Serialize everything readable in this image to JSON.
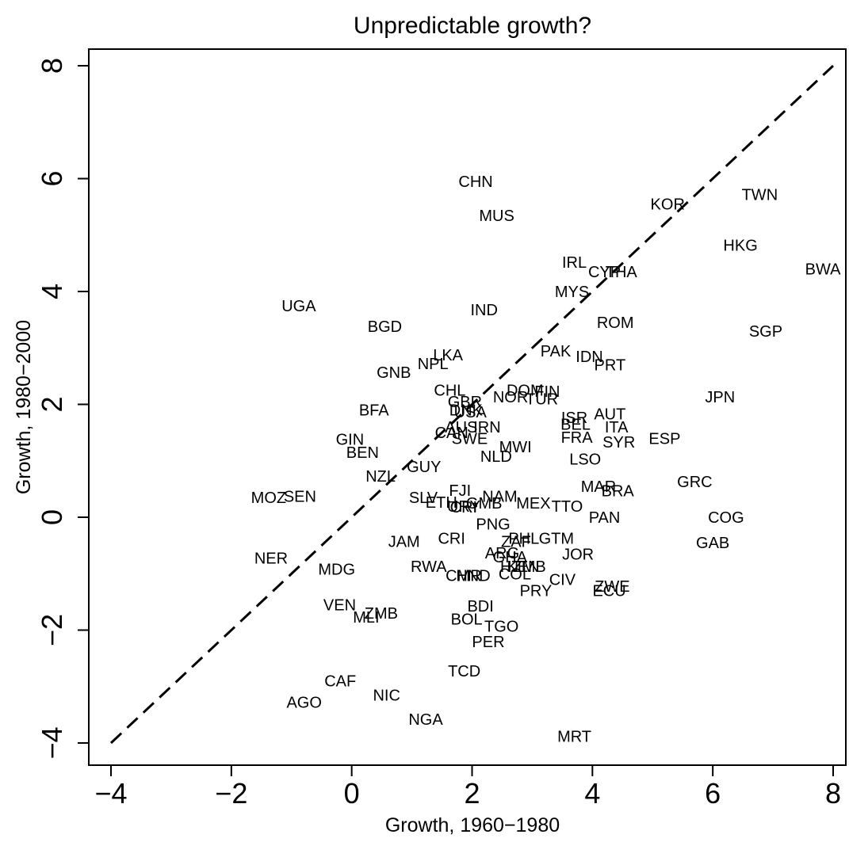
{
  "chart_data": {
    "type": "scatter",
    "title": "Unpredictable growth?",
    "xlabel": "Growth, 1960−1980",
    "ylabel": "Growth, 1980−2000",
    "xlim": [
      -4.5,
      8.3
    ],
    "ylim": [
      -4.6,
      8.3
    ],
    "x_ticks": [
      -4,
      -2,
      0,
      2,
      4,
      6,
      8
    ],
    "y_ticks": [
      -4,
      -2,
      0,
      2,
      4,
      6,
      8
    ],
    "x_tick_labels": [
      "−4",
      "−2",
      "0",
      "2",
      "4",
      "6",
      "8"
    ],
    "y_tick_labels": [
      "−4",
      "−2",
      "0",
      "2",
      "4",
      "6",
      "8"
    ],
    "reference_line": {
      "style": "dashed",
      "from": [
        -4,
        -4
      ],
      "to": [
        8,
        8
      ]
    },
    "grid": false,
    "points": [
      {
        "label": "CHN",
        "x": 2.06,
        "y": 5.95
      },
      {
        "label": "MUS",
        "x": 2.41,
        "y": 5.35
      },
      {
        "label": "TWN",
        "x": 6.78,
        "y": 5.72
      },
      {
        "label": "KOR",
        "x": 5.25,
        "y": 5.55
      },
      {
        "label": "HKG",
        "x": 6.46,
        "y": 4.82
      },
      {
        "label": "BWA",
        "x": 7.83,
        "y": 4.4
      },
      {
        "label": "IRL",
        "x": 3.7,
        "y": 4.52
      },
      {
        "label": "CYP",
        "x": 4.2,
        "y": 4.35
      },
      {
        "label": "THA",
        "x": 4.48,
        "y": 4.35
      },
      {
        "label": "MYS",
        "x": 3.66,
        "y": 4.0
      },
      {
        "label": "UGA",
        "x": -0.88,
        "y": 3.75
      },
      {
        "label": "IND",
        "x": 2.2,
        "y": 3.68
      },
      {
        "label": "ROM",
        "x": 4.38,
        "y": 3.45
      },
      {
        "label": "SGP",
        "x": 6.88,
        "y": 3.3
      },
      {
        "label": "BGD",
        "x": 0.55,
        "y": 3.38
      },
      {
        "label": "PAK",
        "x": 3.39,
        "y": 2.95
      },
      {
        "label": "IDN",
        "x": 3.95,
        "y": 2.85
      },
      {
        "label": "LKA",
        "x": 1.6,
        "y": 2.88
      },
      {
        "label": "PRT",
        "x": 4.29,
        "y": 2.7
      },
      {
        "label": "NPL",
        "x": 1.35,
        "y": 2.72
      },
      {
        "label": "GNB",
        "x": 0.7,
        "y": 2.57
      },
      {
        "label": "JPN",
        "x": 6.12,
        "y": 2.13
      },
      {
        "label": "CHL",
        "x": 1.63,
        "y": 2.25
      },
      {
        "label": "DOM",
        "x": 2.88,
        "y": 2.25
      },
      {
        "label": "FIN",
        "x": 3.25,
        "y": 2.23
      },
      {
        "label": "NOR",
        "x": 2.64,
        "y": 2.13
      },
      {
        "label": "TUR",
        "x": 3.16,
        "y": 2.1
      },
      {
        "label": "GBR",
        "x": 1.88,
        "y": 2.05
      },
      {
        "label": "BFA",
        "x": 0.37,
        "y": 1.9
      },
      {
        "label": "DNK",
        "x": 1.9,
        "y": 1.9
      },
      {
        "label": "USA",
        "x": 1.97,
        "y": 1.87
      },
      {
        "label": "AUT",
        "x": 4.29,
        "y": 1.83
      },
      {
        "label": "ISR",
        "x": 3.7,
        "y": 1.77
      },
      {
        "label": "AUS",
        "x": 1.82,
        "y": 1.6
      },
      {
        "label": "IRN",
        "x": 2.25,
        "y": 1.6
      },
      {
        "label": "BEL",
        "x": 3.72,
        "y": 1.65
      },
      {
        "label": "ITA",
        "x": 4.4,
        "y": 1.6
      },
      {
        "label": "CAN",
        "x": 1.66,
        "y": 1.5
      },
      {
        "label": "SWE",
        "x": 1.96,
        "y": 1.4
      },
      {
        "label": "FRA",
        "x": 3.74,
        "y": 1.42
      },
      {
        "label": "ESP",
        "x": 5.2,
        "y": 1.4
      },
      {
        "label": "SYR",
        "x": 4.44,
        "y": 1.33
      },
      {
        "label": "GIN",
        "x": -0.03,
        "y": 1.38
      },
      {
        "label": "BEN",
        "x": 0.18,
        "y": 1.15
      },
      {
        "label": "MWI",
        "x": 2.72,
        "y": 1.25
      },
      {
        "label": "NLD",
        "x": 2.4,
        "y": 1.08
      },
      {
        "label": "LSO",
        "x": 3.88,
        "y": 1.03
      },
      {
        "label": "GUY",
        "x": 1.2,
        "y": 0.9
      },
      {
        "label": "NZL",
        "x": 0.48,
        "y": 0.73
      },
      {
        "label": "GRC",
        "x": 5.7,
        "y": 0.63
      },
      {
        "label": "MAR",
        "x": 4.1,
        "y": 0.55
      },
      {
        "label": "BRA",
        "x": 4.42,
        "y": 0.47
      },
      {
        "label": "FJI",
        "x": 1.8,
        "y": 0.48
      },
      {
        "label": "NAM",
        "x": 2.46,
        "y": 0.37
      },
      {
        "label": "MOZ",
        "x": -1.38,
        "y": 0.35
      },
      {
        "label": "SEN",
        "x": -0.86,
        "y": 0.37
      },
      {
        "label": "SLV",
        "x": 1.19,
        "y": 0.35
      },
      {
        "label": "ETH",
        "x": 1.49,
        "y": 0.27
      },
      {
        "label": "GMB",
        "x": 2.2,
        "y": 0.25
      },
      {
        "label": "URY",
        "x": 1.86,
        "y": 0.2
      },
      {
        "label": "CRI",
        "x": 1.86,
        "y": 0.18
      },
      {
        "label": "MEX",
        "x": 3.02,
        "y": 0.25
      },
      {
        "label": "TTO",
        "x": 3.58,
        "y": 0.2
      },
      {
        "label": "COG",
        "x": 6.22,
        "y": 0.0
      },
      {
        "label": "PAN",
        "x": 4.2,
        "y": 0.0
      },
      {
        "label": "PNG",
        "x": 2.35,
        "y": -0.12
      },
      {
        "label": "JAM",
        "x": 0.87,
        "y": -0.43
      },
      {
        "label": "CRI",
        "x": 1.66,
        "y": -0.37
      },
      {
        "label": "PHL",
        "x": 2.86,
        "y": -0.37
      },
      {
        "label": "GTM",
        "x": 3.4,
        "y": -0.37
      },
      {
        "label": "ZAF",
        "x": 2.73,
        "y": -0.43
      },
      {
        "label": "GAB",
        "x": 6.0,
        "y": -0.45
      },
      {
        "label": "ARG",
        "x": 2.5,
        "y": -0.63
      },
      {
        "label": "JOR",
        "x": 3.76,
        "y": -0.65
      },
      {
        "label": "GHA",
        "x": 2.63,
        "y": -0.7
      },
      {
        "label": "NER",
        "x": -1.34,
        "y": -0.72
      },
      {
        "label": "HTI",
        "x": 2.68,
        "y": -0.87
      },
      {
        "label": "KEN",
        "x": 2.85,
        "y": -0.87
      },
      {
        "label": "ZMB",
        "x": 2.95,
        "y": -0.87
      },
      {
        "label": "RWA",
        "x": 1.28,
        "y": -0.87
      },
      {
        "label": "MDG",
        "x": -0.25,
        "y": -0.92
      },
      {
        "label": "CMR",
        "x": 1.86,
        "y": -1.03
      },
      {
        "label": "HND",
        "x": 2.02,
        "y": -1.03
      },
      {
        "label": "COL",
        "x": 2.71,
        "y": -1.0
      },
      {
        "label": "CIV",
        "x": 3.5,
        "y": -1.1
      },
      {
        "label": "ZWE",
        "x": 4.33,
        "y": -1.22
      },
      {
        "label": "ECU",
        "x": 4.28,
        "y": -1.3
      },
      {
        "label": "PRY",
        "x": 3.06,
        "y": -1.3
      },
      {
        "label": "VEN",
        "x": -0.2,
        "y": -1.55
      },
      {
        "label": "ZMB",
        "x": 0.49,
        "y": -1.7
      },
      {
        "label": "MLI",
        "x": 0.24,
        "y": -1.77
      },
      {
        "label": "BDI",
        "x": 2.14,
        "y": -1.57
      },
      {
        "label": "BOL",
        "x": 1.91,
        "y": -1.8
      },
      {
        "label": "TGO",
        "x": 2.49,
        "y": -1.93
      },
      {
        "label": "PER",
        "x": 2.27,
        "y": -2.2
      },
      {
        "label": "TCD",
        "x": 1.87,
        "y": -2.72
      },
      {
        "label": "CAF",
        "x": -0.19,
        "y": -2.9
      },
      {
        "label": "AGO",
        "x": -0.79,
        "y": -3.28
      },
      {
        "label": "NIC",
        "x": 0.58,
        "y": -3.15
      },
      {
        "label": "NGA",
        "x": 1.23,
        "y": -3.58
      },
      {
        "label": "MRT",
        "x": 3.7,
        "y": -3.88
      }
    ]
  }
}
